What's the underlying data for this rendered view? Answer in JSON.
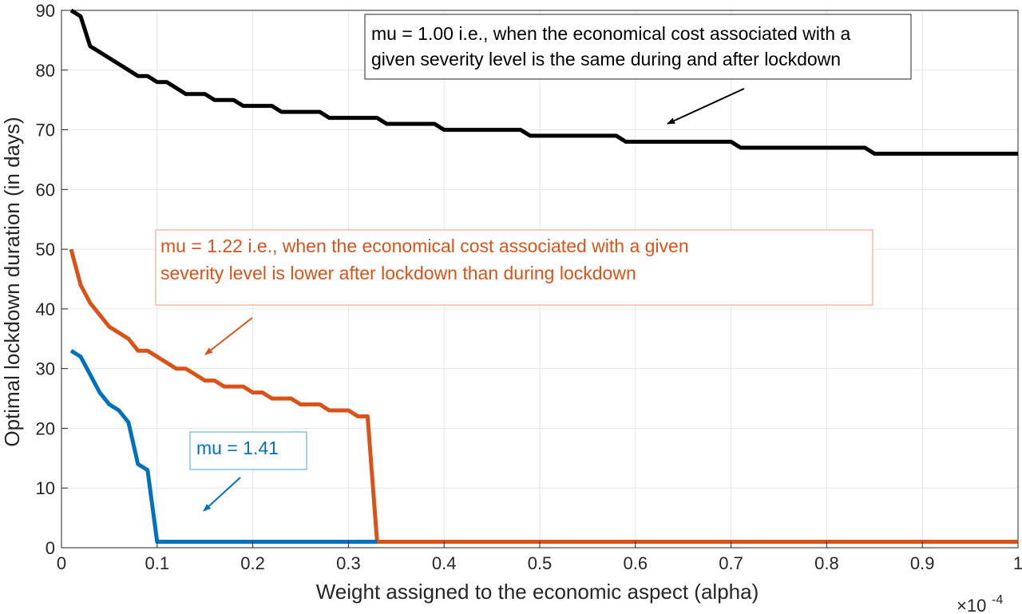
{
  "chart_data": {
    "type": "line",
    "xlabel": "Weight assigned to the economic aspect (alpha)",
    "ylabel": "Optimal lockdown duration (in days)",
    "x_multiplier": "×10",
    "x_multiplier_exp": "-4",
    "xlim": [
      0,
      1
    ],
    "ylim": [
      0,
      90
    ],
    "xticks": [
      0,
      0.1,
      0.2,
      0.3,
      0.4,
      0.5,
      0.6,
      0.7,
      0.8,
      0.9,
      1
    ],
    "xtick_labels": [
      "0",
      "0.1",
      "0.2",
      "0.3",
      "0.4",
      "0.5",
      "0.6",
      "0.7",
      "0.8",
      "0.9",
      "1"
    ],
    "yticks": [
      0,
      10,
      20,
      30,
      40,
      50,
      60,
      70,
      80,
      90
    ],
    "ytick_labels": [
      "0",
      "10",
      "20",
      "30",
      "40",
      "50",
      "60",
      "70",
      "80",
      "90"
    ],
    "grid": true,
    "series": [
      {
        "color": "#000000",
        "points": [
          [
            0.01,
            90
          ],
          [
            0.02,
            89
          ],
          [
            0.03,
            84
          ],
          [
            0.04,
            83
          ],
          [
            0.05,
            82
          ],
          [
            0.06,
            81
          ],
          [
            0.07,
            80
          ],
          [
            0.08,
            79
          ],
          [
            0.09,
            79
          ],
          [
            0.1,
            78
          ],
          [
            0.11,
            78
          ],
          [
            0.12,
            77
          ],
          [
            0.13,
            76
          ],
          [
            0.15,
            76
          ],
          [
            0.16,
            75
          ],
          [
            0.18,
            75
          ],
          [
            0.19,
            74
          ],
          [
            0.22,
            74
          ],
          [
            0.23,
            73
          ],
          [
            0.27,
            73
          ],
          [
            0.28,
            72
          ],
          [
            0.33,
            72
          ],
          [
            0.34,
            71
          ],
          [
            0.39,
            71
          ],
          [
            0.4,
            70
          ],
          [
            0.48,
            70
          ],
          [
            0.49,
            69
          ],
          [
            0.58,
            69
          ],
          [
            0.59,
            68
          ],
          [
            0.7,
            68
          ],
          [
            0.71,
            67
          ],
          [
            0.84,
            67
          ],
          [
            0.85,
            66
          ],
          [
            1.0,
            66
          ]
        ]
      },
      {
        "color": "#d95319",
        "points": [
          [
            0.01,
            50
          ],
          [
            0.02,
            44
          ],
          [
            0.03,
            41
          ],
          [
            0.04,
            39
          ],
          [
            0.05,
            37
          ],
          [
            0.06,
            36
          ],
          [
            0.07,
            35
          ],
          [
            0.08,
            33
          ],
          [
            0.09,
            33
          ],
          [
            0.1,
            32
          ],
          [
            0.11,
            31
          ],
          [
            0.12,
            30
          ],
          [
            0.13,
            30
          ],
          [
            0.14,
            29
          ],
          [
            0.15,
            28
          ],
          [
            0.16,
            28
          ],
          [
            0.17,
            27
          ],
          [
            0.19,
            27
          ],
          [
            0.2,
            26
          ],
          [
            0.21,
            26
          ],
          [
            0.22,
            25
          ],
          [
            0.24,
            25
          ],
          [
            0.25,
            24
          ],
          [
            0.27,
            24
          ],
          [
            0.28,
            23
          ],
          [
            0.3,
            23
          ],
          [
            0.31,
            22
          ],
          [
            0.32,
            22
          ],
          [
            0.33,
            1
          ],
          [
            1.0,
            1
          ]
        ]
      },
      {
        "color": "#0072bd",
        "points": [
          [
            0.01,
            33
          ],
          [
            0.02,
            32
          ],
          [
            0.03,
            29
          ],
          [
            0.04,
            26
          ],
          [
            0.05,
            24
          ],
          [
            0.06,
            23
          ],
          [
            0.07,
            21
          ],
          [
            0.08,
            14
          ],
          [
            0.09,
            13
          ],
          [
            0.1,
            1
          ],
          [
            0.33,
            1
          ]
        ]
      }
    ],
    "annotations": [
      {
        "color": "#000000",
        "lines": [
          "mu = 1.00 i.e., when the economical cost associated with a",
          "given severity level is the same during and after lockdown"
        ]
      },
      {
        "color": "#d95319",
        "lines": [
          "mu = 1.22 i.e., when the economical cost associated with a given",
          "severity level is lower after lockdown than during lockdown"
        ]
      },
      {
        "color": "#0072bd",
        "lines": [
          "mu = 1.41"
        ]
      }
    ]
  }
}
